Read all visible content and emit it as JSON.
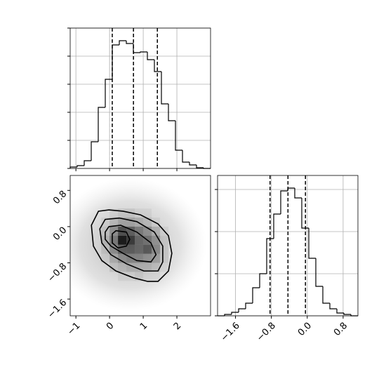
{
  "chart_data": [
    {
      "type": "histogram",
      "bins": [
        -1.17,
        -0.9615,
        -0.753,
        -0.5445,
        -0.336,
        -0.1275,
        0.081,
        0.2895,
        0.498,
        0.7065,
        0.915,
        1.1235,
        1.332,
        1.5405,
        1.749,
        1.9575,
        2.166,
        2.3745,
        2.583,
        2.7915,
        3.0
      ],
      "values": [
        0.01,
        0.02,
        0.055,
        0.19,
        0.435,
        0.635,
        0.88,
        0.91,
        0.89,
        0.825,
        0.83,
        0.775,
        0.69,
        0.46,
        0.34,
        0.13,
        0.045,
        0.025,
        0.005,
        0
      ],
      "color": "#000000",
      "xlim": [
        -1.17,
        3.0
      ],
      "ylim": [
        0,
        1
      ],
      "xticks": [
        -1,
        0,
        1,
        2
      ],
      "yticks": [
        0,
        0.2,
        0.4,
        0.6,
        0.8,
        1
      ],
      "xtick_labels": false,
      "ytick_labels": false,
      "quantiles": [
        0.08,
        0.71,
        1.42
      ],
      "grid": true
    },
    {
      "type": "hist2d",
      "xlim": [
        -1.17,
        3.0
      ],
      "ylim": [
        -1.97,
        1.13
      ],
      "xticks": [
        {
          "value": -1,
          "label": "−1"
        },
        0,
        1,
        2
      ],
      "yticks": [
        {
          "value": -1.6,
          "label": "−1.6"
        },
        {
          "value": -0.8,
          "label": "−0.8"
        },
        {
          "value": 0,
          "label": "0.0"
        },
        0.8
      ],
      "xtick_labels": true,
      "ytick_labels": true,
      "color": "#000000",
      "density": {
        "x_edges": [
          -0.25,
          0,
          0.25,
          0.5,
          0.75,
          1,
          1.25,
          1.5,
          1.75
        ],
        "y_edges": [
          0.4,
          0.2,
          0,
          -0.2,
          -0.4,
          -0.6,
          -0.8,
          -1.0,
          -1.2
        ],
        "values": [
          [
            0,
            0.05,
            0.1,
            0.1,
            0.05,
            0.05,
            0,
            0
          ],
          [
            0.05,
            0.15,
            0.25,
            0.25,
            0.2,
            0.15,
            0.05,
            0
          ],
          [
            0.1,
            0.35,
            0.7,
            0.6,
            0.45,
            0.35,
            0.2,
            0.05
          ],
          [
            0.15,
            0.45,
            1.0,
            0.8,
            0.55,
            0.5,
            0.35,
            0.1
          ],
          [
            0.1,
            0.35,
            0.6,
            0.6,
            0.55,
            0.65,
            0.4,
            0.1
          ],
          [
            0.05,
            0.2,
            0.35,
            0.4,
            0.4,
            0.35,
            0.3,
            0.1
          ],
          [
            0,
            0.1,
            0.15,
            0.2,
            0.2,
            0.2,
            0.15,
            0.05
          ],
          [
            0,
            0,
            0.05,
            0.05,
            0.1,
            0.05,
            0.05,
            0
          ]
        ]
      },
      "contours": [
        {
          "x": [
            -0.54,
            -0.33,
            -0.02,
            0.4,
            0.92,
            1.44,
            1.75,
            1.85,
            1.75,
            1.44,
            1.13,
            0.71,
            0.19,
            -0.23,
            -0.48
          ],
          "y": [
            0.03,
            0.34,
            0.37,
            0.34,
            0.26,
            0.06,
            -0.2,
            -0.59,
            -0.98,
            -1.21,
            -1.21,
            -1.13,
            -0.98,
            -0.75,
            -0.43
          ]
        },
        {
          "x": [
            -0.29,
            -0.13,
            0.29,
            0.81,
            1.33,
            1.58,
            1.58,
            1.44,
            1.02,
            0.5,
            0.04,
            -0.23
          ],
          "y": [
            -0.05,
            0.16,
            0.19,
            0.11,
            -0.12,
            -0.43,
            -0.78,
            -0.98,
            -0.98,
            -0.82,
            -0.62,
            -0.36
          ]
        },
        {
          "x": [
            -0.13,
            -0.02,
            0.33,
            0.81,
            1.23,
            1.38,
            1.23,
            0.81,
            0.4,
            0.04,
            -0.13
          ],
          "y": [
            -0.12,
            0,
            0.03,
            -0.12,
            -0.36,
            -0.62,
            -0.78,
            -0.75,
            -0.59,
            -0.43,
            -0.28
          ]
        },
        {
          "x": [
            0.08,
            0.19,
            0.5,
            0.6,
            0.5,
            0.25,
            0.08
          ],
          "y": [
            -0.16,
            -0.09,
            -0.12,
            -0.28,
            -0.43,
            -0.47,
            -0.36
          ]
        }
      ]
    },
    {
      "type": "histogram",
      "bins": [
        -2.0,
        -1.8435,
        -1.687,
        -1.5305,
        -1.374,
        -1.2175,
        -1.061,
        -0.9045,
        -0.748,
        -0.5915,
        -0.435,
        -0.2785,
        -0.122,
        0.0345,
        0.191,
        0.3475,
        0.504,
        0.6605,
        0.817,
        0.9735,
        1.13
      ],
      "values": [
        0,
        0.01,
        0.025,
        0.05,
        0.09,
        0.2,
        0.3,
        0.55,
        0.725,
        0.89,
        0.91,
        0.84,
        0.625,
        0.41,
        0.21,
        0.09,
        0.05,
        0.02,
        0.01,
        0
      ],
      "color": "#000000",
      "xlim": [
        -2.0,
        1.13
      ],
      "ylim": [
        0,
        1
      ],
      "xticks": [
        {
          "value": -1.6,
          "label": "−1.6"
        },
        {
          "value": -0.8,
          "label": "−0.8"
        },
        {
          "value": 0,
          "label": "0.0"
        },
        0.8
      ],
      "yticks": [
        0,
        0.3,
        0.6,
        0.9
      ],
      "xtick_labels": true,
      "ytick_labels": false,
      "quantiles": [
        -0.83,
        -0.43,
        -0.04
      ],
      "grid": true
    }
  ]
}
